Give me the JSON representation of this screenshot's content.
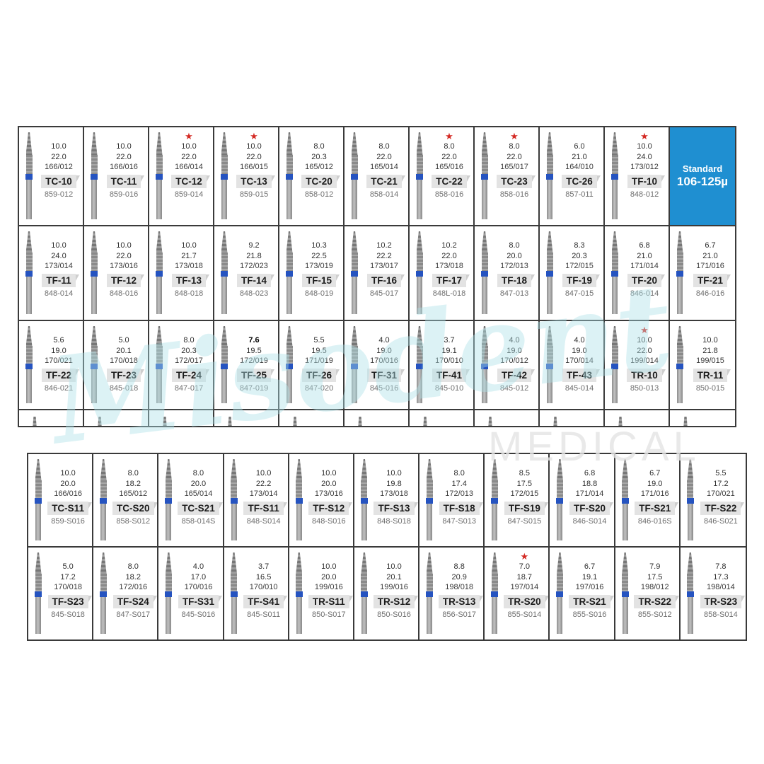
{
  "watermark": {
    "script_text": "Misodent",
    "medical_text": "MEDICAL",
    "script_color": "#aee2e8",
    "medical_color": "#e4e4e4"
  },
  "colors": {
    "border": "#3a3a3a",
    "bur_band_blue": "#2553c0",
    "info_cell_blue": "#1f8fd1",
    "star_red": "#d42a24",
    "tag_gray": "#e3e3e3"
  },
  "tables": [
    {
      "name": "upper",
      "partial_row_cells": 11,
      "rows": [
        [
          {
            "star": false,
            "d1": "10.0",
            "d2": "22.0",
            "iso": "166/012",
            "code": "TC-10",
            "order": "859-012"
          },
          {
            "star": false,
            "d1": "10.0",
            "d2": "22.0",
            "iso": "166/016",
            "code": "TC-11",
            "order": "859-016"
          },
          {
            "star": true,
            "d1": "10.0",
            "d2": "22.0",
            "iso": "166/014",
            "code": "TC-12",
            "order": "859-014"
          },
          {
            "star": true,
            "d1": "10.0",
            "d2": "22.0",
            "iso": "166/015",
            "code": "TC-13",
            "order": "859-015"
          },
          {
            "star": false,
            "d1": "8.0",
            "d2": "20.3",
            "iso": "165/012",
            "code": "TC-20",
            "order": "858-012"
          },
          {
            "star": false,
            "d1": "8.0",
            "d2": "22.0",
            "iso": "165/014",
            "code": "TC-21",
            "order": "858-014"
          },
          {
            "star": true,
            "d1": "8.0",
            "d2": "22.0",
            "iso": "165/016",
            "code": "TC-22",
            "order": "858-016"
          },
          {
            "star": true,
            "d1": "8.0",
            "d2": "22.0",
            "iso": "165/017",
            "code": "TC-23",
            "order": "858-016"
          },
          {
            "star": false,
            "d1": "6.0",
            "d2": "21.0",
            "iso": "164/010",
            "code": "TC-26",
            "order": "857-011"
          },
          {
            "star": true,
            "d1": "10.0",
            "d2": "24.0",
            "iso": "173/012",
            "code": "TF-10",
            "order": "848-012"
          },
          {
            "type": "info",
            "line1": "Standard",
            "line2": "106-125µ"
          }
        ],
        [
          {
            "star": false,
            "d1": "10.0",
            "d2": "24.0",
            "iso": "173/014",
            "code": "TF-11",
            "order": "848-014"
          },
          {
            "star": false,
            "d1": "10.0",
            "d2": "22.0",
            "iso": "173/016",
            "code": "TF-12",
            "order": "848-016"
          },
          {
            "star": false,
            "d1": "10.0",
            "d2": "21.7",
            "iso": "173/018",
            "code": "TF-13",
            "order": "848-018"
          },
          {
            "star": false,
            "d1": "9.2",
            "d2": "21.8",
            "iso": "172/023",
            "code": "TF-14",
            "order": "848-023"
          },
          {
            "star": false,
            "d1": "10.3",
            "d2": "22.5",
            "iso": "173/019",
            "code": "TF-15",
            "order": "848-019"
          },
          {
            "star": false,
            "d1": "10.2",
            "d2": "22.2",
            "iso": "173/017",
            "code": "TF-16",
            "order": "845-017"
          },
          {
            "star": false,
            "d1": "10.2",
            "d2": "22.0",
            "iso": "173/018",
            "code": "TF-17",
            "order": "848L-018"
          },
          {
            "star": false,
            "d1": "8.0",
            "d2": "20.0",
            "iso": "172/013",
            "code": "TF-18",
            "order": "847-013"
          },
          {
            "star": false,
            "d1": "8.3",
            "d2": "20.3",
            "iso": "172/015",
            "code": "TF-19",
            "order": "847-015"
          },
          {
            "star": false,
            "d1": "6.8",
            "d2": "21.0",
            "iso": "171/014",
            "code": "TF-20",
            "order": "846-014"
          },
          {
            "star": false,
            "d1": "6.7",
            "d2": "21.0",
            "iso": "171/016",
            "code": "TF-21",
            "order": "846-016"
          }
        ],
        [
          {
            "star": false,
            "d1": "5.6",
            "d2": "19.0",
            "iso": "170/021",
            "code": "TF-22",
            "order": "846-021"
          },
          {
            "star": false,
            "d1": "5.0",
            "d2": "20.1",
            "iso": "170/018",
            "code": "TF-23",
            "order": "845-018"
          },
          {
            "star": false,
            "d1": "8.0",
            "d2": "20.3",
            "iso": "172/017",
            "code": "TF-24",
            "order": "847-017"
          },
          {
            "star": false,
            "d1": "7.6",
            "d1_bold": true,
            "d2": "19.5",
            "iso": "172/019",
            "code": "TF-25",
            "order": "847-019"
          },
          {
            "star": false,
            "d1": "5.5",
            "d2": "19.5",
            "iso": "171/019",
            "code": "TF-26",
            "order": "847-020"
          },
          {
            "star": false,
            "d1": "4.0",
            "d2": "19.0",
            "iso": "170/016",
            "code": "TF-31",
            "order": "845-016"
          },
          {
            "star": false,
            "d1": "3.7",
            "d2": "19.1",
            "iso": "170/010",
            "code": "TF-41",
            "order": "845-010"
          },
          {
            "star": false,
            "d1": "4.0",
            "d2": "19.0",
            "iso": "170/012",
            "code": "TF-42",
            "order": "845-012"
          },
          {
            "star": false,
            "d1": "4.0",
            "d2": "19.0",
            "iso": "170/014",
            "code": "TF-43",
            "order": "845-014"
          },
          {
            "star": true,
            "d1": "10.0",
            "d2": "22.0",
            "iso": "199/014",
            "code": "TR-10",
            "order": "850-013"
          },
          {
            "star": false,
            "d1": "10.0",
            "d2": "21.8",
            "iso": "199/015",
            "code": "TR-11",
            "order": "850-015"
          }
        ]
      ]
    },
    {
      "name": "lower",
      "partial_row_cells": 0,
      "rows": [
        [
          {
            "star": false,
            "d1": "10.0",
            "d2": "20.0",
            "iso": "166/016",
            "code": "TC-S11",
            "order": "859-S016"
          },
          {
            "star": false,
            "d1": "8.0",
            "d2": "18.2",
            "iso": "165/012",
            "code": "TC-S20",
            "order": "858-S012"
          },
          {
            "star": false,
            "d1": "8.0",
            "d2": "20.0",
            "iso": "165/014",
            "code": "TC-S21",
            "order": "858-014S"
          },
          {
            "star": false,
            "d1": "10.0",
            "d2": "22.2",
            "iso": "173/014",
            "code": "TF-S11",
            "order": "848-S014"
          },
          {
            "star": false,
            "d1": "10.0",
            "d2": "20.0",
            "iso": "173/016",
            "code": "TF-S12",
            "order": "848-S016"
          },
          {
            "star": false,
            "d1": "10.0",
            "d2": "19.8",
            "iso": "173/018",
            "code": "TF-S13",
            "order": "848-S018"
          },
          {
            "star": false,
            "d1": "8.0",
            "d2": "17.4",
            "iso": "172/013",
            "code": "TF-S18",
            "order": "847-S013"
          },
          {
            "star": false,
            "d1": "8.5",
            "d2": "17.5",
            "iso": "172/015",
            "code": "TF-S19",
            "order": "847-S015"
          },
          {
            "star": false,
            "d1": "6.8",
            "d2": "18.8",
            "iso": "171/014",
            "code": "TF-S20",
            "order": "846-S014"
          },
          {
            "star": false,
            "d1": "6.7",
            "d2": "19.0",
            "iso": "171/016",
            "code": "TF-S21",
            "order": "846-016S"
          },
          {
            "star": false,
            "d1": "5.5",
            "d2": "17.2",
            "iso": "170/021",
            "code": "TF-S22",
            "order": "846-S021"
          }
        ],
        [
          {
            "star": false,
            "d1": "5.0",
            "d2": "17.2",
            "iso": "170/018",
            "code": "TF-S23",
            "order": "845-S018"
          },
          {
            "star": false,
            "d1": "8.0",
            "d2": "18.2",
            "iso": "172/016",
            "code": "TF-S24",
            "order": "847-S017"
          },
          {
            "star": false,
            "d1": "4.0",
            "d2": "17.0",
            "iso": "170/016",
            "code": "TF-S31",
            "order": "845-S016"
          },
          {
            "star": false,
            "d1": "3.7",
            "d2": "16.5",
            "iso": "170/010",
            "code": "TF-S41",
            "order": "845-S011"
          },
          {
            "star": false,
            "d1": "10.0",
            "d2": "20.0",
            "iso": "199/016",
            "code": "TR-S11",
            "order": "850-S017"
          },
          {
            "star": false,
            "d1": "10.0",
            "d2": "20.1",
            "iso": "199/016",
            "code": "TR-S12",
            "order": "850-S016"
          },
          {
            "star": false,
            "d1": "8.8",
            "d2": "20.9",
            "iso": "198/018",
            "code": "TR-S13",
            "order": "856-S017"
          },
          {
            "star": true,
            "d1": "7.0",
            "d2": "18.7",
            "iso": "197/014",
            "code": "TR-S20",
            "order": "855-S014"
          },
          {
            "star": false,
            "d1": "6.7",
            "d2": "19.1",
            "iso": "197/016",
            "code": "TR-S21",
            "order": "855-S016"
          },
          {
            "star": false,
            "d1": "7.9",
            "d2": "17.5",
            "iso": "198/012",
            "code": "TR-S22",
            "order": "855-S012"
          },
          {
            "star": false,
            "d1": "7.8",
            "d2": "17.3",
            "iso": "198/014",
            "code": "TR-S23",
            "order": "858-S014"
          }
        ]
      ]
    }
  ]
}
